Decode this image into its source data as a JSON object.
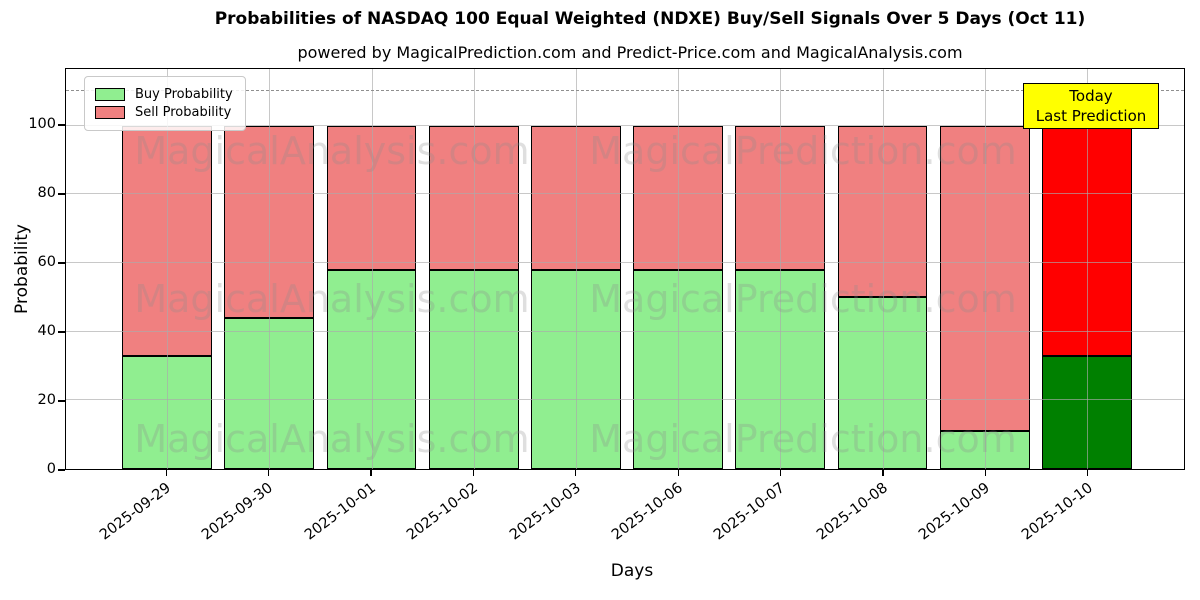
{
  "title": "Probabilities of NASDAQ 100 Equal Weighted (NDXE) Buy/Sell Signals Over 5 Days (Oct 11)",
  "subtitle": "powered by MagicalPrediction.com and Predict-Price.com and MagicalAnalysis.com",
  "watermarks": {
    "left": "MagicalAnalysis.com",
    "right": "MagicalPrediction.com"
  },
  "annotation": {
    "line1": "Today",
    "line2": "Last Prediction",
    "bg_color": "#ffff00"
  },
  "colors": {
    "buy": "#90ee90",
    "sell": "#f08080",
    "today_buy": "#008000",
    "today_sell": "#ff0000",
    "grid": "#aaaaaa",
    "dashed_line": "#8f8f8f",
    "bar_edge": "#000000"
  },
  "chart_data": {
    "type": "bar",
    "stacked": true,
    "title": "Probabilities of NASDAQ 100 Equal Weighted (NDXE) Buy/Sell Signals Over 5 Days (Oct 11)",
    "subtitle": "powered by MagicalPrediction.com and Predict-Price.com and MagicalAnalysis.com",
    "xlabel": "Days",
    "ylabel": "Probability",
    "categories": [
      "2025-09-29",
      "2025-09-30",
      "2025-10-01",
      "2025-10-02",
      "2025-10-03",
      "2025-10-06",
      "2025-10-07",
      "2025-10-08",
      "2025-10-09",
      "2025-10-10"
    ],
    "series": [
      {
        "name": "Buy Probability",
        "color": "#90ee90",
        "values": [
          33,
          44,
          58,
          58,
          58,
          58,
          58,
          50,
          11,
          33
        ]
      },
      {
        "name": "Sell Probability",
        "color": "#f08080",
        "values": [
          67,
          56,
          42,
          42,
          42,
          42,
          42,
          50,
          89,
          67
        ]
      }
    ],
    "bar_total": 100,
    "today_index": 9,
    "today_colors": {
      "buy": "#008000",
      "sell": "#ff0000"
    },
    "yticks": [
      0,
      20,
      40,
      60,
      80,
      100
    ],
    "ylim": [
      0,
      116.5
    ],
    "dashed_line_y": 110,
    "grid": true,
    "legend_position": "upper left"
  }
}
